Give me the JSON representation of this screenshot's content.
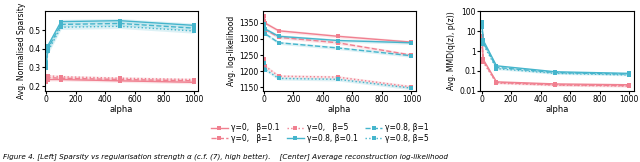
{
  "caption": "Figure 4. [Left] Sparsity vs regularisation strength α (c.f. (7), high better).    [Center] Average reconstruction log-likelihood",
  "legend": "lower center",
  "chart_data": [
    {
      "type": "line",
      "x_label": "alpha",
      "y_label": "Avg. Normalised Sparsity",
      "x": [
        1,
        10,
        100,
        500,
        1000
      ],
      "xlim": [
        -10,
        1030
      ],
      "xticks": [
        0,
        200,
        400,
        600,
        800,
        1000
      ],
      "ylim": [
        0.175,
        0.6
      ],
      "yticks": [
        0.2,
        0.3,
        0.4,
        0.5
      ],
      "marker": "square",
      "series": [
        {
          "name": "γ=0,   β=0.1",
          "color": "#f08090",
          "line_style": "solid",
          "values": [
            0.22,
            0.235,
            0.235,
            0.228,
            0.22
          ],
          "errors": [
            0.01,
            0.008,
            0.008,
            0.008,
            0.008
          ]
        },
        {
          "name": "γ=0,   β=1",
          "color": "#f08090",
          "line_style": "dashed",
          "values": [
            0.235,
            0.245,
            0.242,
            0.235,
            0.228
          ],
          "errors": [
            0.01,
            0.008,
            0.008,
            0.008,
            0.008
          ]
        },
        {
          "name": "γ=0,   β=5",
          "color": "#f08090",
          "line_style": "dotted",
          "values": [
            0.245,
            0.255,
            0.25,
            0.242,
            0.235
          ],
          "errors": [
            0.01,
            0.008,
            0.008,
            0.008,
            0.008
          ]
        },
        {
          "name": "γ=0.8, β=0.1",
          "color": "#45b5cc",
          "line_style": "solid",
          "values": [
            0.325,
            0.415,
            0.545,
            0.55,
            0.525
          ],
          "errors": [
            0.015,
            0.015,
            0.012,
            0.012,
            0.012
          ]
        },
        {
          "name": "γ=0.8, β=1",
          "color": "#45b5cc",
          "line_style": "dashed",
          "values": [
            0.31,
            0.4,
            0.53,
            0.535,
            0.51
          ],
          "errors": [
            0.015,
            0.015,
            0.012,
            0.012,
            0.012
          ]
        },
        {
          "name": "γ=0.8, β=5",
          "color": "#45b5cc",
          "line_style": "dotted",
          "values": [
            0.295,
            0.385,
            0.515,
            0.52,
            0.495
          ],
          "errors": [
            0.015,
            0.015,
            0.012,
            0.012,
            0.012
          ]
        }
      ]
    },
    {
      "type": "line",
      "x_label": "alpha",
      "y_label": "Avg. log-likelihood",
      "x": [
        1,
        10,
        100,
        500,
        1000
      ],
      "xlim": [
        -10,
        1030
      ],
      "xticks": [
        0,
        200,
        400,
        600,
        800,
        1000
      ],
      "ylim": [
        1140,
        1385
      ],
      "yticks": [
        1150,
        1200,
        1250,
        1300,
        1350
      ],
      "marker": "square",
      "series": [
        {
          "name": "γ=0,   β=0.1",
          "color": "#f08090",
          "line_style": "solid",
          "values": [
            1372,
            1348,
            1325,
            1308,
            1290
          ],
          "errors": [
            5,
            5,
            5,
            5,
            5
          ]
        },
        {
          "name": "γ=0,   β=1",
          "color": "#f08090",
          "line_style": "dashed",
          "values": [
            1355,
            1328,
            1305,
            1288,
            1250
          ],
          "errors": [
            5,
            5,
            5,
            5,
            5
          ]
        },
        {
          "name": "γ=0,   β=5",
          "color": "#f08090",
          "line_style": "dotted",
          "values": [
            1238,
            1215,
            1185,
            1182,
            1152
          ],
          "errors": [
            5,
            5,
            5,
            5,
            5
          ]
        },
        {
          "name": "γ=0.8, β=0.1",
          "color": "#45b5cc",
          "line_style": "solid",
          "values": [
            1345,
            1330,
            1308,
            1295,
            1288
          ],
          "errors": [
            5,
            5,
            5,
            5,
            5
          ]
        },
        {
          "name": "γ=0.8, β=1",
          "color": "#45b5cc",
          "line_style": "dashed",
          "values": [
            1335,
            1315,
            1288,
            1272,
            1248
          ],
          "errors": [
            5,
            5,
            5,
            5,
            5
          ]
        },
        {
          "name": "γ=0.8, β=5",
          "color": "#45b5cc",
          "line_style": "dotted",
          "values": [
            1225,
            1205,
            1178,
            1175,
            1148
          ],
          "errors": [
            5,
            5,
            5,
            5,
            5
          ]
        }
      ]
    },
    {
      "type": "line",
      "x_label": "alpha",
      "y_label": "Avg. MMD(q(z), p(z))",
      "x": [
        1,
        10,
        100,
        500,
        1000
      ],
      "xlim": [
        -10,
        1030
      ],
      "xticks": [
        0,
        200,
        400,
        600,
        800,
        1000
      ],
      "log": "y",
      "ylim": [
        0.01,
        100
      ],
      "yticks": [
        0.01,
        0.1,
        1,
        10,
        100
      ],
      "marker": "square",
      "series": [
        {
          "name": "γ=0,   β=0.1",
          "color": "#f08090",
          "line_style": "solid",
          "values": [
            5.5,
            0.38,
            0.028,
            0.022,
            0.02
          ],
          "errors": [
            0.5,
            0.03,
            0.002,
            0.002,
            0.002
          ]
        },
        {
          "name": "γ=0,   β=1",
          "color": "#f08090",
          "line_style": "dashed",
          "values": [
            3.8,
            0.32,
            0.026,
            0.02,
            0.018
          ],
          "errors": [
            0.5,
            0.03,
            0.002,
            0.002,
            0.002
          ]
        },
        {
          "name": "γ=0,   β=5",
          "color": "#f08090",
          "line_style": "dotted",
          "values": [
            2.5,
            0.28,
            0.024,
            0.019,
            0.017
          ],
          "errors": [
            0.5,
            0.03,
            0.002,
            0.002,
            0.002
          ]
        },
        {
          "name": "γ=0.8, β=0.1",
          "color": "#45b5cc",
          "line_style": "solid",
          "values": [
            28.0,
            3.5,
            0.18,
            0.09,
            0.075
          ],
          "errors": [
            2.0,
            0.3,
            0.015,
            0.008,
            0.006
          ]
        },
        {
          "name": "γ=0.8, β=1",
          "color": "#45b5cc",
          "line_style": "dashed",
          "values": [
            22.0,
            2.8,
            0.15,
            0.082,
            0.068
          ],
          "errors": [
            2.0,
            0.3,
            0.015,
            0.008,
            0.006
          ]
        },
        {
          "name": "γ=0.8, β=5",
          "color": "#45b5cc",
          "line_style": "dotted",
          "values": [
            16.0,
            2.2,
            0.13,
            0.075,
            0.062
          ],
          "errors": [
            2.0,
            0.3,
            0.015,
            0.008,
            0.006
          ]
        }
      ]
    }
  ]
}
